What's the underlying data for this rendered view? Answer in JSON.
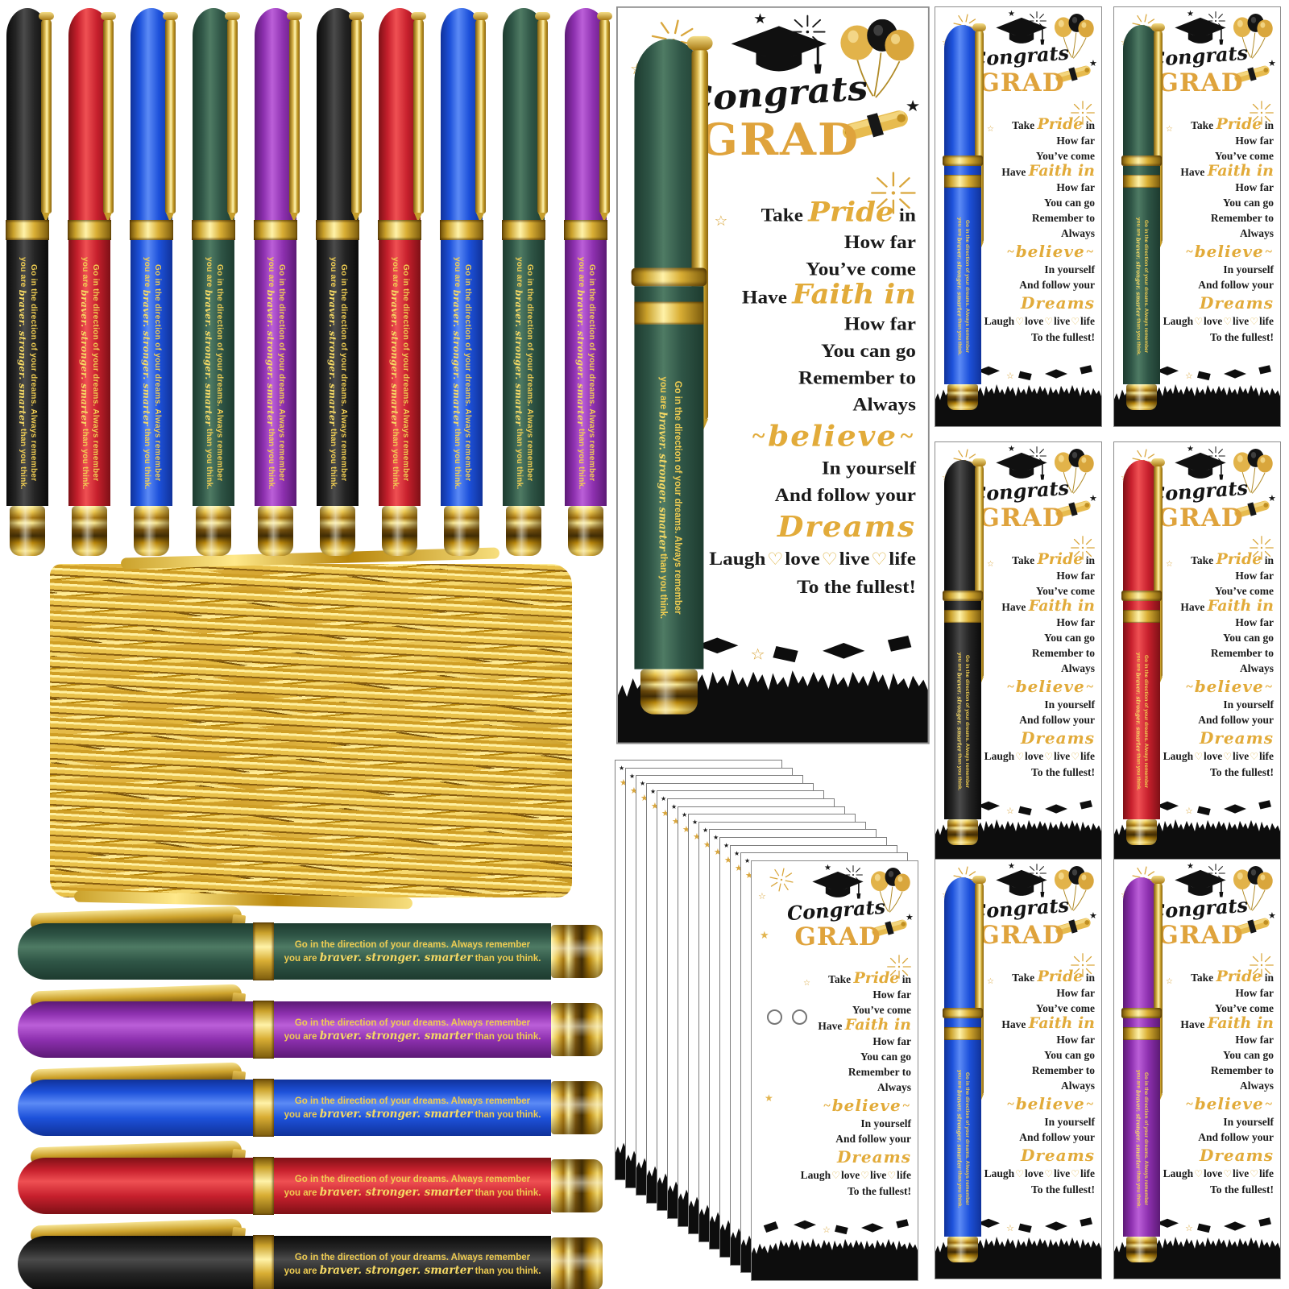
{
  "pen": {
    "quote_line1": "Go in the direction of your dreams. Always remember",
    "quote_prefix": "you are ",
    "quote_script": "braver. stronger. smarter",
    "quote_suffix": " than you think."
  },
  "card": {
    "congrats": "Congrats",
    "grad": "GRAD",
    "take": "Take",
    "pride": "Pride",
    "in_word": "in",
    "how_far": "How far",
    "youve_come": "You’ve come",
    "have": "Have",
    "faith_in": "Faith in",
    "you_can_go": "You can go",
    "remember_to": "Remember to",
    "always": "Always",
    "believe": "believe",
    "in_yourself": "In yourself",
    "and_follow_your": "And follow your",
    "dreams": "Dreams",
    "laugh": "Laugh",
    "love": "love",
    "live": "live",
    "life": "life",
    "to_the_fullest": "To the fullest!"
  },
  "icons": {
    "star": "★",
    "star_o": "☆",
    "heart": "♡",
    "swash": "~"
  },
  "pens": {
    "vertical": [
      "black",
      "red",
      "blue",
      "green",
      "purple",
      "black",
      "red",
      "blue",
      "green",
      "purple"
    ],
    "horizontal": [
      "green",
      "purple",
      "blue",
      "red",
      "black"
    ]
  },
  "cards": {
    "instances": [
      {
        "slot": "large",
        "pen": "green",
        "holes": false
      },
      {
        "slot": "grid-1",
        "pen": "blue",
        "holes": false
      },
      {
        "slot": "grid-2",
        "pen": "green",
        "holes": false
      },
      {
        "slot": "grid-3",
        "pen": "black",
        "holes": false
      },
      {
        "slot": "grid-4",
        "pen": "red",
        "holes": false
      },
      {
        "slot": "grid-5",
        "pen": "blue",
        "holes": false
      },
      {
        "slot": "grid-6",
        "pen": "purple",
        "holes": false
      },
      {
        "slot": "stack-front",
        "pen": null,
        "holes": true
      }
    ]
  },
  "stack": {
    "back_cards": 13
  },
  "colors": {
    "background": "#ffffff",
    "gold": "#d9a63c",
    "gold_light": "#f6e084",
    "gold_dark": "#8a5f14",
    "card_title_gold": "#dfa33c",
    "text_black": "#1b1b1b",
    "pen_black": "#242424",
    "pen_red": "#c7202d",
    "pen_blue": "#1d51da",
    "pen_green": "#2f5546",
    "pen_purple": "#8d30af"
  }
}
